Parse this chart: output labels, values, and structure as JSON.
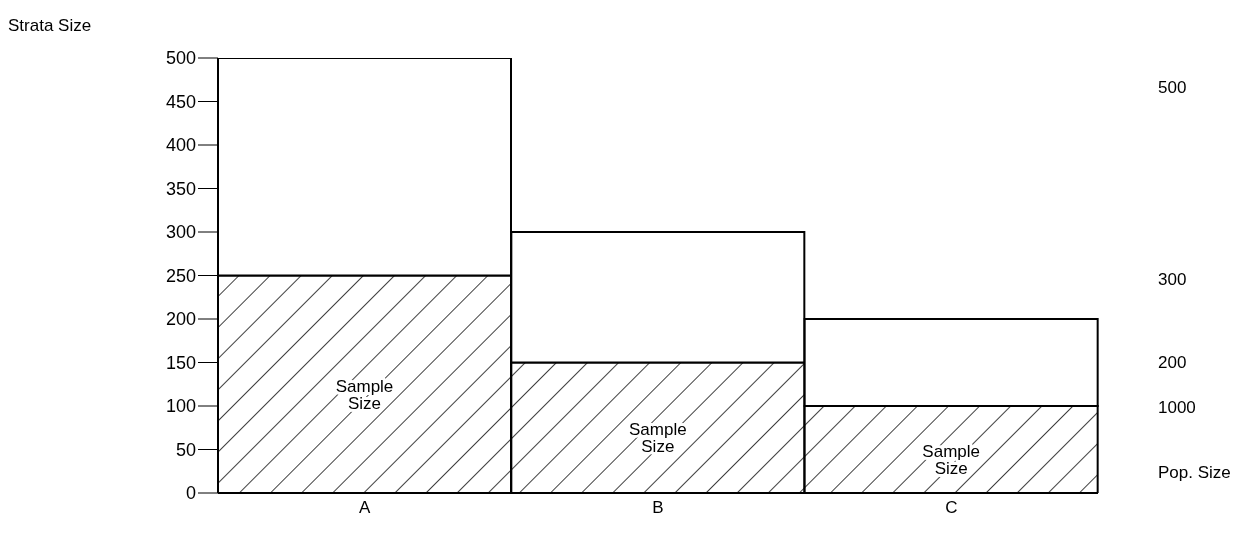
{
  "chart_data": {
    "type": "bar",
    "ylabel": "Strata Size",
    "categories": [
      "A",
      "B",
      "C"
    ],
    "stacked": true,
    "series": [
      {
        "name": "Sample Size",
        "color": "#000000",
        "values": [
          250,
          150,
          100
        ]
      },
      {
        "color": "#ffffff",
        "values": [
          250,
          150,
          100
        ]
      }
    ],
    "ylim": [
      0,
      500
    ],
    "yticks": [
      0,
      50,
      100,
      150,
      200,
      250,
      300,
      350,
      400,
      450,
      500
    ],
    "annotations": [
      "500",
      "300",
      "200",
      "1000",
      "Pop. Size"
    ]
  }
}
